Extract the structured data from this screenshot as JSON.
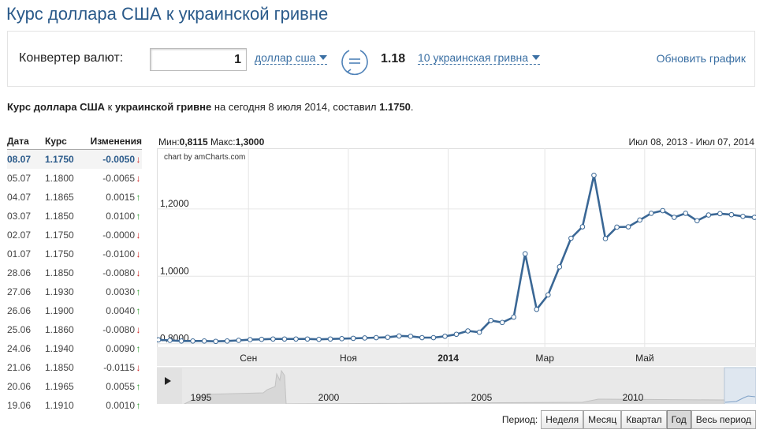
{
  "page": {
    "title": "Курс доллара США к украинской гривне"
  },
  "converter": {
    "label": "Конвертер валют:",
    "amount": "1",
    "from_currency": "доллар сша",
    "result": "1.18",
    "to_currency": "10 украинская гривна",
    "refresh_label": "Обновить график"
  },
  "summary": {
    "prefix": "Курс доллара США",
    "mid1": " к ",
    "target": "украинской гривне",
    "mid2": " на сегодня 8 июля 2014, составил ",
    "value": "1.1750",
    "suffix": "."
  },
  "table": {
    "headers": {
      "date": "Дата",
      "rate": "Курс",
      "change": "Изменения"
    },
    "rows": [
      {
        "date": "08.07",
        "rate": "1.1750",
        "change": "-0.0050",
        "dir": "down"
      },
      {
        "date": "05.07",
        "rate": "1.1800",
        "change": "-0.0065",
        "dir": "down"
      },
      {
        "date": "04.07",
        "rate": "1.1865",
        "change": "0.0015",
        "dir": "up"
      },
      {
        "date": "03.07",
        "rate": "1.1850",
        "change": "0.0100",
        "dir": "up"
      },
      {
        "date": "02.07",
        "rate": "1.1750",
        "change": "-0.0000",
        "dir": "down"
      },
      {
        "date": "01.07",
        "rate": "1.1750",
        "change": "-0.0100",
        "dir": "down"
      },
      {
        "date": "28.06",
        "rate": "1.1850",
        "change": "-0.0080",
        "dir": "down"
      },
      {
        "date": "27.06",
        "rate": "1.1930",
        "change": "0.0030",
        "dir": "up"
      },
      {
        "date": "26.06",
        "rate": "1.1900",
        "change": "0.0040",
        "dir": "up"
      },
      {
        "date": "25.06",
        "rate": "1.1860",
        "change": "-0.0080",
        "dir": "down"
      },
      {
        "date": "24.06",
        "rate": "1.1940",
        "change": "0.0090",
        "dir": "up"
      },
      {
        "date": "21.06",
        "rate": "1.1850",
        "change": "-0.0115",
        "dir": "down"
      },
      {
        "date": "20.06",
        "rate": "1.1965",
        "change": "0.0055",
        "dir": "up"
      },
      {
        "date": "19.06",
        "rate": "1.1910",
        "change": "0.0010",
        "dir": "up"
      }
    ]
  },
  "chart_header": {
    "min_label": "Мин:",
    "min_value": "0,8115",
    "max_label": " Макс:",
    "max_value": "1,3000",
    "range": "Июл 08, 2013 - Июл 07, 2014"
  },
  "chart_note": "chart by amCharts.com",
  "chart_data": {
    "type": "line",
    "x": [
      "2013-07-08",
      "2013-07-15",
      "2013-07-22",
      "2013-07-29",
      "2013-08-05",
      "2013-08-12",
      "2013-08-19",
      "2013-08-26",
      "2013-09-02",
      "2013-09-09",
      "2013-09-16",
      "2013-09-23",
      "2013-09-30",
      "2013-10-07",
      "2013-10-14",
      "2013-10-21",
      "2013-10-28",
      "2013-11-04",
      "2013-11-11",
      "2013-11-18",
      "2013-11-25",
      "2013-12-02",
      "2013-12-09",
      "2013-12-16",
      "2013-12-23",
      "2013-12-30",
      "2014-01-06",
      "2014-01-13",
      "2014-01-20",
      "2014-01-27",
      "2014-02-03",
      "2014-02-10",
      "2014-02-17",
      "2014-02-24",
      "2014-03-03",
      "2014-03-10",
      "2014-03-17",
      "2014-03-24",
      "2014-03-31",
      "2014-04-07",
      "2014-04-14",
      "2014-04-21",
      "2014-04-28",
      "2014-05-05",
      "2014-05-12",
      "2014-05-19",
      "2014-05-26",
      "2014-06-02",
      "2014-06-09",
      "2014-06-16",
      "2014-06-23",
      "2014-06-30",
      "2014-07-07"
    ],
    "values": [
      0.8115,
      0.81,
      0.808,
      0.808,
      0.808,
      0.807,
      0.808,
      0.81,
      0.812,
      0.813,
      0.814,
      0.814,
      0.814,
      0.814,
      0.813,
      0.814,
      0.815,
      0.816,
      0.817,
      0.818,
      0.819,
      0.823,
      0.822,
      0.818,
      0.818,
      0.822,
      0.828,
      0.838,
      0.834,
      0.869,
      0.863,
      0.879,
      1.067,
      0.902,
      0.945,
      1.028,
      1.113,
      1.147,
      1.3,
      1.112,
      1.146,
      1.147,
      1.167,
      1.187,
      1.195,
      1.175,
      1.187,
      1.165,
      1.182,
      1.186,
      1.183,
      1.178,
      1.175
    ],
    "ylim": [
      0.79,
      1.38
    ],
    "yticks": [
      "1,2000",
      "1,0000",
      "0,8000"
    ],
    "ytick_values": [
      1.2,
      1.0,
      0.8
    ],
    "xtick_labels": [
      "Сен",
      "Ноя",
      "2014",
      "Мар",
      "Май"
    ],
    "xtick_dates": [
      "2013-09-01",
      "2013-11-01",
      "2014-01-01",
      "2014-03-01",
      "2014-05-01"
    ],
    "grid": true,
    "color": "#3a6795",
    "navigator": {
      "labels": [
        "1995",
        "2000",
        "2005",
        "2010"
      ]
    }
  },
  "period": {
    "label": "Период:",
    "buttons": [
      "Неделя",
      "Месяц",
      "Квартал",
      "Год",
      "Весь период"
    ],
    "active": "Год"
  }
}
